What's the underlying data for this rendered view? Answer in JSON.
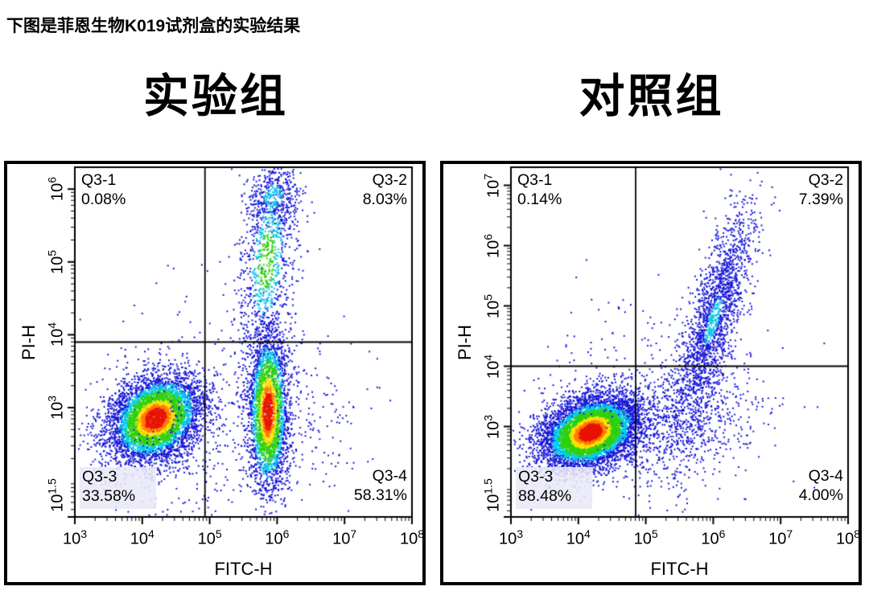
{
  "caption": "下图是菲恩生物K019试剂盒的实验结果",
  "colors": {
    "axis": "#000000",
    "palettes": {
      "hot": [
        [
          0.45,
          "#e81400"
        ],
        [
          0.62,
          "#ff7d00"
        ],
        [
          0.8,
          "#ffe000"
        ],
        [
          1.22,
          "#2fd00e"
        ],
        [
          1.52,
          "#00cdf0"
        ],
        [
          99,
          "#1515d8"
        ]
      ],
      "cool": [
        [
          0.55,
          "#2fd00e"
        ],
        [
          1.0,
          "#10c8e8"
        ],
        [
          99,
          "#1616d8"
        ]
      ],
      "cyan": [
        [
          0.75,
          "#10c8e8"
        ],
        [
          99,
          "#1616d8"
        ]
      ],
      "bluecyan": [
        [
          0.38,
          "#10c8e8"
        ],
        [
          99,
          "#1616d8"
        ]
      ],
      "blue": [
        [
          99,
          "#1818da"
        ]
      ]
    },
    "quadrant_shade": "#e9e9f7"
  },
  "chart_data": [
    {
      "type": "scatter",
      "title": "实验组",
      "xlabel": "FITC-H",
      "ylabel": "PI-H",
      "x_log_range": [
        3,
        8
      ],
      "y_log_range": [
        1.5,
        6.3
      ],
      "tick_base": "10",
      "x_ticks": [
        {
          "exp": "3",
          "log": 3
        },
        {
          "exp": "4",
          "log": 4
        },
        {
          "exp": "5",
          "log": 5
        },
        {
          "exp": "6",
          "log": 6
        },
        {
          "exp": "7",
          "log": 7
        },
        {
          "exp": "8",
          "log": 8
        }
      ],
      "y_ticks": [
        {
          "exp": "1.5",
          "log": 1.5
        },
        {
          "exp": "3",
          "log": 3
        },
        {
          "exp": "4",
          "log": 4
        },
        {
          "exp": "5",
          "log": 5
        },
        {
          "exp": "6",
          "log": 6
        }
      ],
      "gate": {
        "x_log": 4.93,
        "y_log": 3.9
      },
      "quadrants": [
        {
          "name": "Q3-1",
          "percent": "0.08%",
          "corner": "tl",
          "shaded": false
        },
        {
          "name": "Q3-2",
          "percent": "8.03%",
          "corner": "tr",
          "shaded": false
        },
        {
          "name": "Q3-3",
          "percent": "33.58%",
          "corner": "bl",
          "shaded": true
        },
        {
          "name": "Q3-4",
          "percent": "58.31%",
          "corner": "br",
          "shaded": false
        }
      ],
      "seed": 12,
      "clusters": [
        {
          "cx": 4.2,
          "cy": 2.85,
          "sx": 0.34,
          "sy": 0.3,
          "rho": 0.25,
          "n": 5200,
          "palette": "hot"
        },
        {
          "cx": 5.87,
          "cy": 2.95,
          "sx": 0.15,
          "sy": 0.55,
          "rho": 0.0,
          "n": 3000,
          "palette": "hot"
        },
        {
          "cx": 5.85,
          "cy": 5.0,
          "sx": 0.22,
          "sy": 0.72,
          "rho": 0.3,
          "n": 1000,
          "palette": "cool"
        },
        {
          "cx": 5.95,
          "cy": 5.9,
          "sx": 0.2,
          "sy": 0.2,
          "rho": 0.0,
          "n": 350,
          "palette": "cyan"
        },
        {
          "cx": 4.6,
          "cy": 2.6,
          "sx": 0.85,
          "sy": 0.7,
          "rho": 0.1,
          "n": 450,
          "palette": "blue"
        },
        {
          "cx": 6.4,
          "cy": 2.9,
          "sx": 0.5,
          "sy": 0.6,
          "rho": 0.0,
          "n": 200,
          "palette": "blue"
        },
        {
          "cx": 4.5,
          "cy": 4.5,
          "sx": 0.45,
          "sy": 0.4,
          "rho": 0.0,
          "n": 18,
          "palette": "blue"
        }
      ]
    },
    {
      "type": "scatter",
      "title": "对照组",
      "xlabel": "FITC-H",
      "ylabel": "PI-H",
      "x_log_range": [
        3,
        8
      ],
      "y_log_range": [
        1.5,
        7.3
      ],
      "tick_base": "10",
      "x_ticks": [
        {
          "exp": "3",
          "log": 3
        },
        {
          "exp": "4",
          "log": 4
        },
        {
          "exp": "5",
          "log": 5
        },
        {
          "exp": "6",
          "log": 6
        },
        {
          "exp": "7",
          "log": 7
        },
        {
          "exp": "8",
          "log": 8
        }
      ],
      "y_ticks": [
        {
          "exp": "1.5",
          "log": 1.5
        },
        {
          "exp": "3",
          "log": 3
        },
        {
          "exp": "4",
          "log": 4
        },
        {
          "exp": "5",
          "log": 5
        },
        {
          "exp": "6",
          "log": 6
        },
        {
          "exp": "7",
          "log": 7
        }
      ],
      "gate": {
        "x_log": 4.85,
        "y_log": 4.0
      },
      "quadrants": [
        {
          "name": "Q3-1",
          "percent": "0.14%",
          "corner": "tl",
          "shaded": false
        },
        {
          "name": "Q3-2",
          "percent": "7.39%",
          "corner": "tr",
          "shaded": false
        },
        {
          "name": "Q3-3",
          "percent": "88.48%",
          "corner": "bl",
          "shaded": true
        },
        {
          "name": "Q3-4",
          "percent": "4.00%",
          "corner": "br",
          "shaded": false
        }
      ],
      "seed": 99,
      "clusters": [
        {
          "cx": 4.18,
          "cy": 2.9,
          "sx": 0.36,
          "sy": 0.3,
          "rho": 0.3,
          "n": 7000,
          "palette": "hot"
        },
        {
          "cx": 6.0,
          "cy": 4.75,
          "sx": 0.3,
          "sy": 0.95,
          "rho": 0.78,
          "n": 1900,
          "palette": "bluecyan"
        },
        {
          "cx": 5.6,
          "cy": 3.1,
          "sx": 0.55,
          "sy": 0.6,
          "rho": 0.2,
          "n": 700,
          "palette": "blue"
        },
        {
          "cx": 4.8,
          "cy": 3.3,
          "sx": 0.9,
          "sy": 0.8,
          "rho": 0.0,
          "n": 280,
          "palette": "blue"
        },
        {
          "cx": 4.5,
          "cy": 4.6,
          "sx": 0.5,
          "sy": 0.45,
          "rho": 0.0,
          "n": 16,
          "palette": "blue"
        }
      ]
    }
  ]
}
